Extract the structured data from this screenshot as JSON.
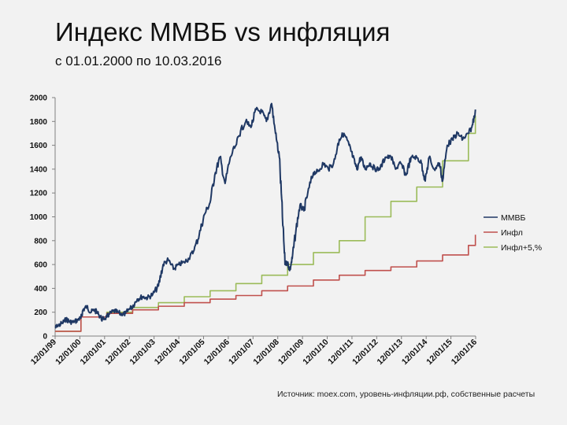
{
  "title": "Индекс ММВБ vs инфляция",
  "subtitle": "с 01.01.2000 по 10.03.2016",
  "source": "Источник: moex.com, уровень-инфляции.рф, собственные расчеты",
  "colors": {
    "mmvb": "#1f3864",
    "infl": "#c0504d",
    "infl5": "#9bbb59",
    "axis": "#808080",
    "background": "#f2f2f2"
  },
  "chart_data": {
    "type": "line",
    "title": "Индекс ММВБ vs инфляция",
    "subtitle": "с 01.01.2000 по 10.03.2016",
    "xlabel": "",
    "ylabel": "",
    "ylim": [
      0,
      2000
    ],
    "yticks": [
      0,
      200,
      400,
      600,
      800,
      1000,
      1200,
      1400,
      1600,
      1800,
      2000
    ],
    "x_tick_labels": [
      "12/01/99",
      "12/01/00",
      "12/01/01",
      "12/01/02",
      "12/01/03",
      "12/01/04",
      "12/01/05",
      "12/01/06",
      "12/01/07",
      "12/01/08",
      "12/01/09",
      "12/01/10",
      "12/01/11",
      "12/01/12",
      "12/01/13",
      "12/01/14",
      "12/01/15",
      "12/01/16"
    ],
    "x_range": [
      1999.92,
      2016.2
    ],
    "grid": false,
    "legend_position": "right",
    "series": [
      {
        "name": "ММВБ",
        "style": "line",
        "x": [
          1999.92,
          2000.0,
          2000.2,
          2000.35,
          2000.5,
          2000.65,
          2000.8,
          2000.92,
          2001.0,
          2001.15,
          2001.3,
          2001.45,
          2001.6,
          2001.75,
          2001.92,
          2002.0,
          2002.2,
          2002.35,
          2002.5,
          2002.65,
          2002.8,
          2002.92,
          2003.1,
          2003.3,
          2003.5,
          2003.7,
          2003.92,
          2004.1,
          2004.3,
          2004.5,
          2004.7,
          2004.92,
          2005.1,
          2005.3,
          2005.5,
          2005.7,
          2005.92,
          2006.1,
          2006.3,
          2006.5,
          2006.7,
          2006.92,
          2007.1,
          2007.3,
          2007.5,
          2007.7,
          2007.92,
          2008.1,
          2008.3,
          2008.45,
          2008.6,
          2008.72,
          2008.82,
          2008.92,
          2009.0,
          2009.1,
          2009.25,
          2009.4,
          2009.55,
          2009.7,
          2009.92,
          2010.1,
          2010.3,
          2010.5,
          2010.7,
          2010.92,
          2011.1,
          2011.3,
          2011.45,
          2011.6,
          2011.75,
          2011.92,
          2012.1,
          2012.3,
          2012.5,
          2012.7,
          2012.92,
          2013.1,
          2013.3,
          2013.5,
          2013.7,
          2013.92,
          2014.1,
          2014.25,
          2014.4,
          2014.6,
          2014.8,
          2014.92,
          2015.1,
          2015.3,
          2015.5,
          2015.7,
          2015.92,
          2016.05,
          2016.19
        ],
        "values": [
          70,
          80,
          110,
          140,
          120,
          115,
          140,
          150,
          220,
          250,
          200,
          220,
          180,
          140,
          160,
          180,
          210,
          200,
          180,
          190,
          230,
          250,
          310,
          330,
          320,
          350,
          420,
          600,
          640,
          560,
          600,
          620,
          650,
          720,
          850,
          1020,
          1120,
          1350,
          1500,
          1280,
          1500,
          1600,
          1720,
          1800,
          1750,
          1900,
          1880,
          1800,
          1950,
          1700,
          1500,
          1000,
          600,
          620,
          550,
          650,
          900,
          1100,
          1050,
          1200,
          1370,
          1380,
          1450,
          1400,
          1450,
          1650,
          1700,
          1600,
          1500,
          1400,
          1500,
          1400,
          1450,
          1400,
          1400,
          1500,
          1500,
          1400,
          1450,
          1350,
          1500,
          1500,
          1450,
          1300,
          1500,
          1400,
          1450,
          1300,
          1600,
          1650,
          1700,
          1650,
          1700,
          1750,
          1900
        ]
      },
      {
        "name": "Инфл",
        "style": "step",
        "x": [
          1999.92,
          2000.92,
          2001.92,
          2002.92,
          2003.92,
          2004.92,
          2005.92,
          2006.92,
          2007.92,
          2008.92,
          2009.92,
          2010.92,
          2011.92,
          2012.92,
          2013.92,
          2014.92,
          2015.92,
          2016.19
        ],
        "values": [
          40,
          160,
          190,
          220,
          250,
          280,
          310,
          340,
          380,
          420,
          470,
          510,
          550,
          580,
          630,
          680,
          760,
          850
        ]
      },
      {
        "name": "Инфл+5,%",
        "style": "step",
        "x": [
          1999.92,
          2000.92,
          2001.92,
          2002.92,
          2003.92,
          2004.92,
          2005.92,
          2006.92,
          2007.92,
          2008.92,
          2009.92,
          2010.92,
          2011.92,
          2012.92,
          2013.92,
          2014.92,
          2015.92,
          2016.19
        ],
        "values": [
          40,
          160,
          200,
          240,
          280,
          330,
          380,
          440,
          510,
          600,
          700,
          800,
          1000,
          1130,
          1250,
          1470,
          1700,
          1850
        ]
      }
    ]
  }
}
